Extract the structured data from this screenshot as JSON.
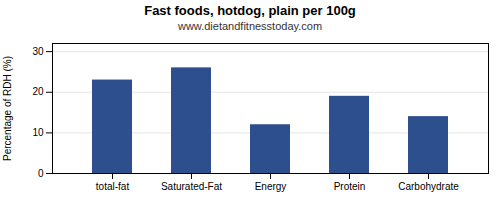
{
  "chart_data": {
    "type": "bar",
    "title": "Fast foods, hotdog, plain per 100g",
    "subtitle": "www.dietandfitnesstoday.com",
    "categories": [
      "total-fat",
      "Saturated-Fat",
      "Energy",
      "Protein",
      "Carbohydrate"
    ],
    "values": [
      23,
      26,
      12,
      19,
      14
    ],
    "color": "#2d4f8e",
    "ylabel": "Percentage of RDH (%)",
    "ylim": [
      0,
      32
    ],
    "yticks": [
      0,
      10,
      20,
      30
    ],
    "grid": true
  }
}
